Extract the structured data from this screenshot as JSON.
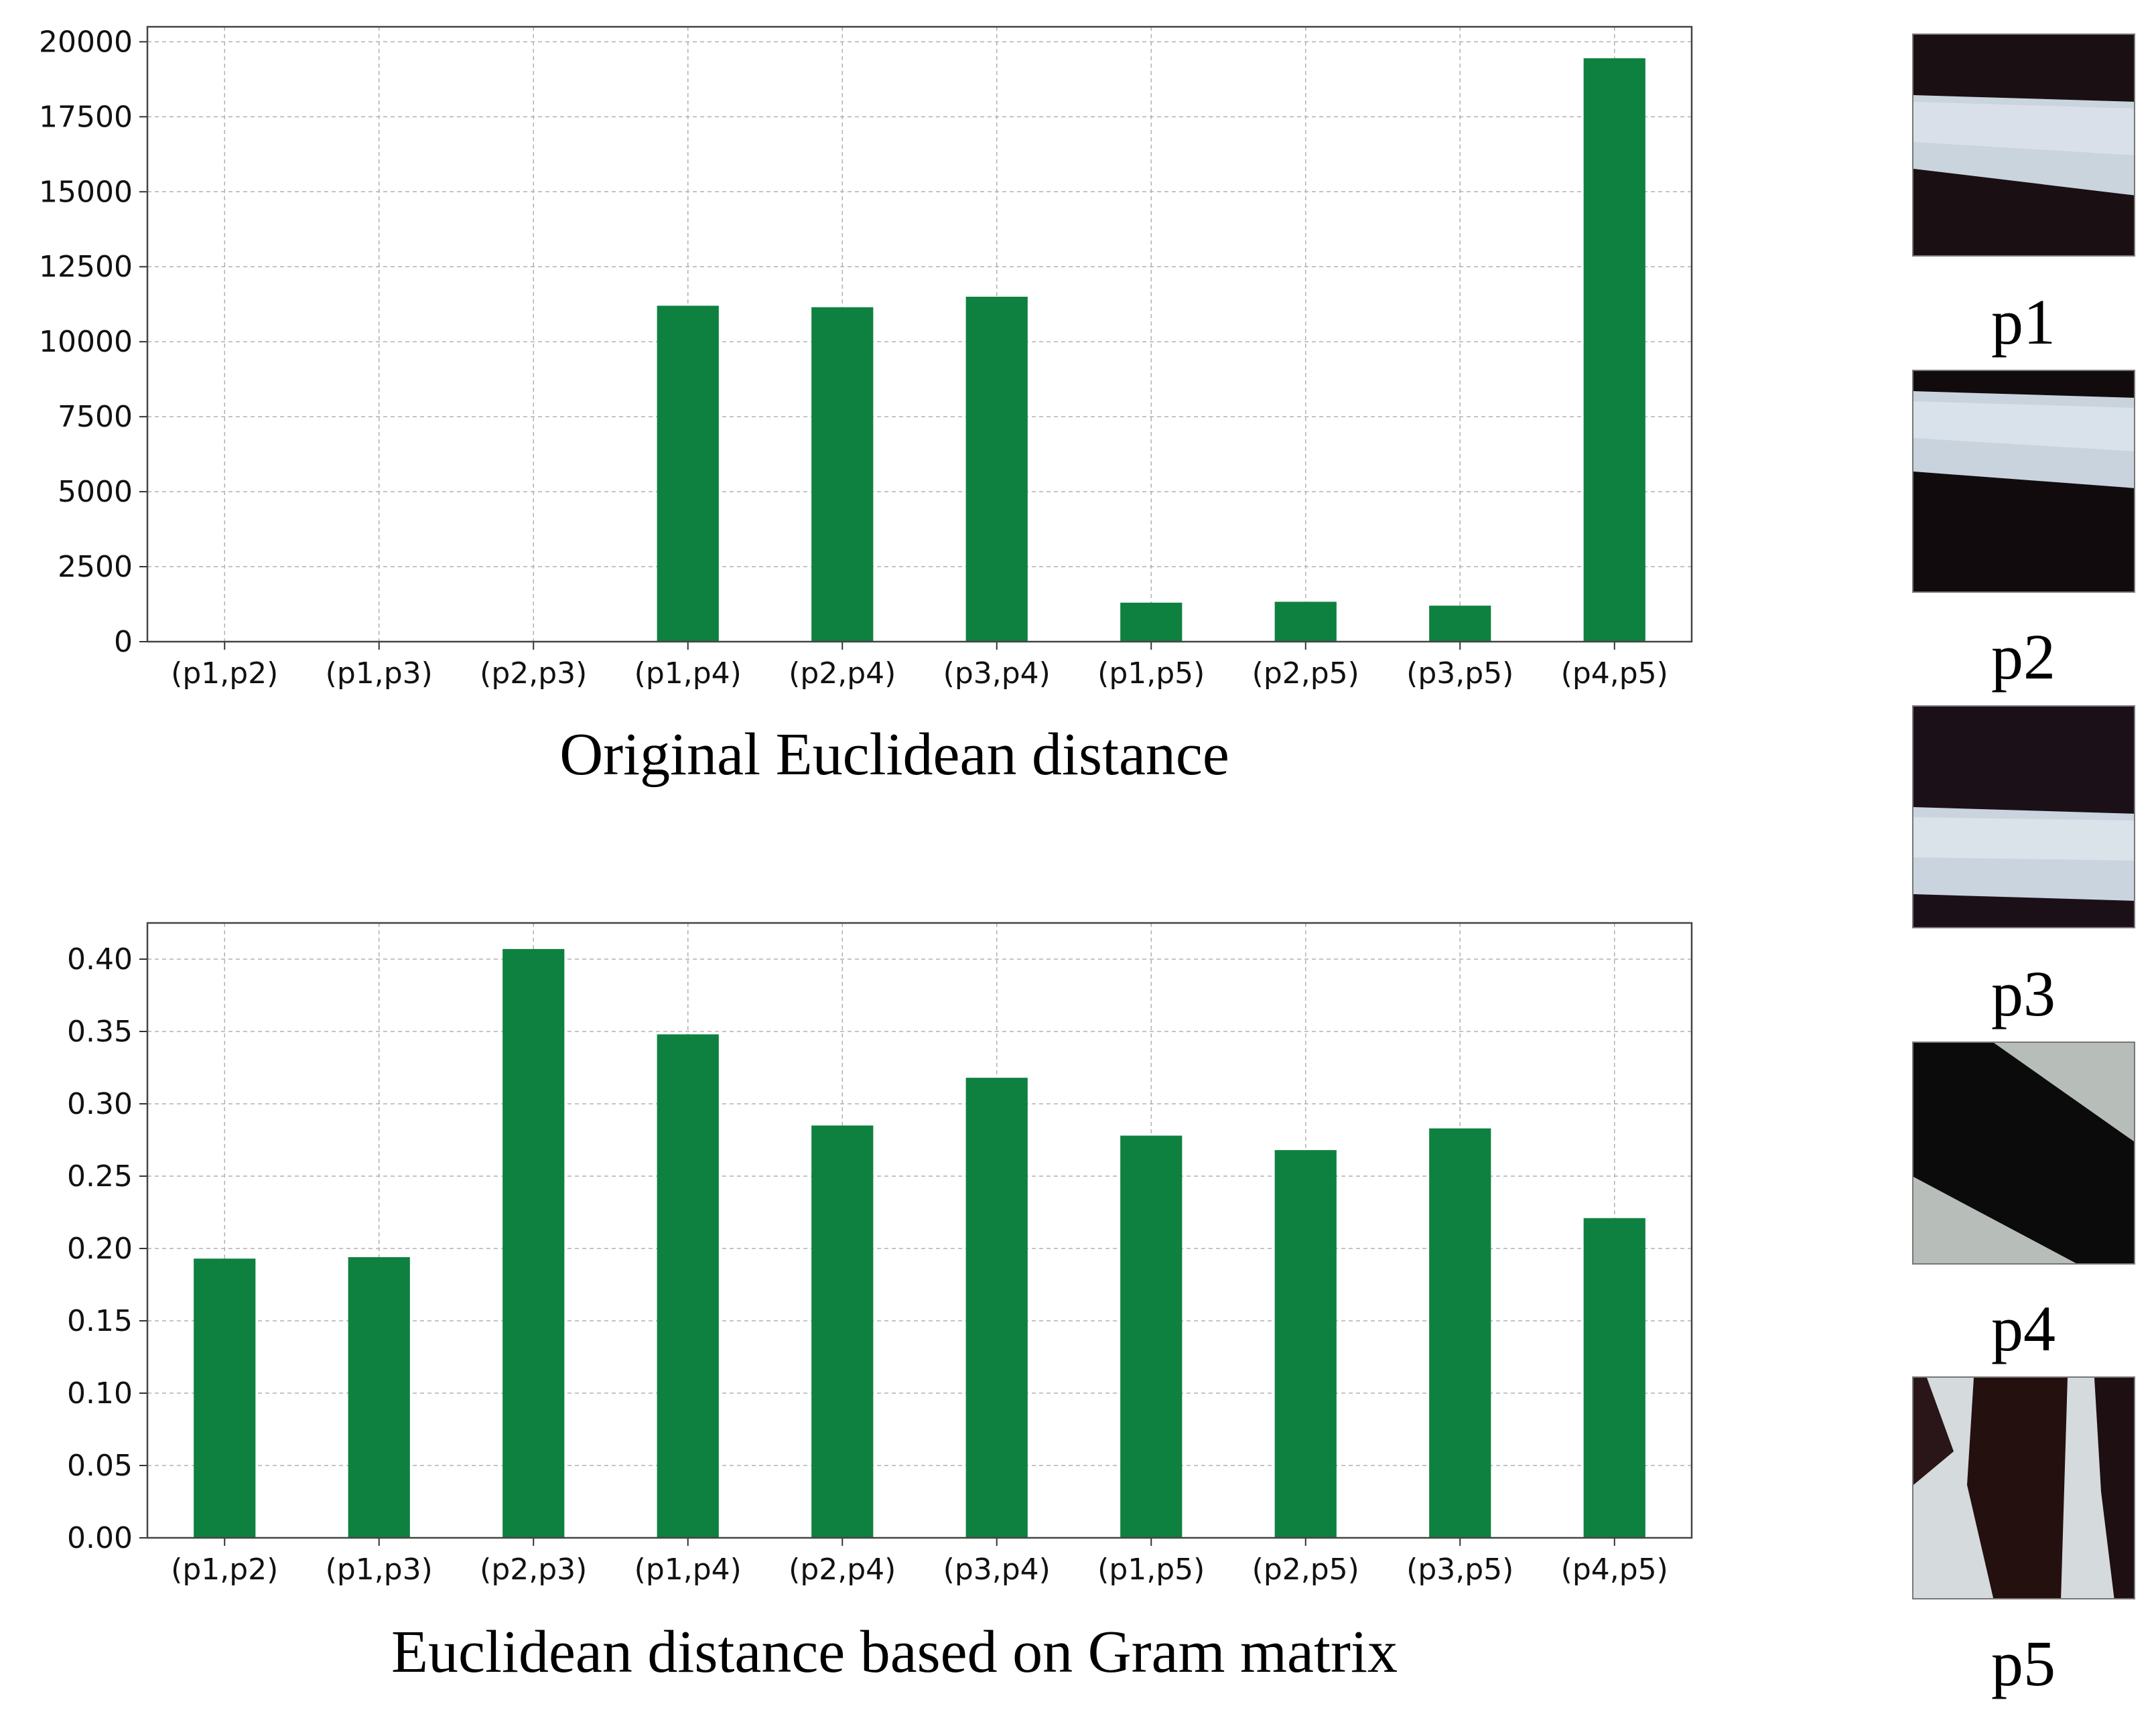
{
  "chart_data": [
    {
      "type": "bar",
      "title": "Original Euclidean distance",
      "categories": [
        "(p1,p2)",
        "(p1,p3)",
        "(p2,p3)",
        "(p1,p4)",
        "(p2,p4)",
        "(p3,p4)",
        "(p1,p5)",
        "(p2,p5)",
        "(p3,p5)",
        "(p4,p5)"
      ],
      "values": [
        0,
        0,
        0,
        11200,
        11150,
        11500,
        1300,
        1330,
        1200,
        19450
      ],
      "ylim": [
        0,
        20500
      ],
      "yticks": [
        0,
        2500,
        5000,
        7500,
        10000,
        12500,
        15000,
        17500,
        20000
      ],
      "ytick_labels": [
        "0",
        "2500",
        "5000",
        "7500",
        "10000",
        "12500",
        "15000",
        "17500",
        "20000"
      ],
      "xlabel": "",
      "ylabel": "",
      "grid": true,
      "bar_color": "#0e8140"
    },
    {
      "type": "bar",
      "title": "Euclidean distance based on Gram matrix",
      "categories": [
        "(p1,p2)",
        "(p1,p3)",
        "(p2,p3)",
        "(p1,p4)",
        "(p2,p4)",
        "(p3,p4)",
        "(p1,p5)",
        "(p2,p5)",
        "(p3,p5)",
        "(p4,p5)"
      ],
      "values": [
        0.193,
        0.194,
        0.407,
        0.348,
        0.285,
        0.318,
        0.278,
        0.268,
        0.283,
        0.221
      ],
      "ylim": [
        0,
        0.425
      ],
      "yticks": [
        0,
        0.05,
        0.1,
        0.15,
        0.2,
        0.25,
        0.3,
        0.35,
        0.4
      ],
      "ytick_labels": [
        "0.00",
        "0.05",
        "0.10",
        "0.15",
        "0.20",
        "0.25",
        "0.30",
        "0.35",
        "0.40"
      ],
      "xlabel": "",
      "ylabel": "",
      "grid": true,
      "bar_color": "#0e8140"
    }
  ],
  "patches": [
    {
      "label": "p1",
      "kind": "horizontal-stripe"
    },
    {
      "label": "p2",
      "kind": "horizontal-stripe"
    },
    {
      "label": "p3",
      "kind": "horizontal-stripe"
    },
    {
      "label": "p4",
      "kind": "diagonal-stripe"
    },
    {
      "label": "p5",
      "kind": "vertical-stripes"
    }
  ]
}
